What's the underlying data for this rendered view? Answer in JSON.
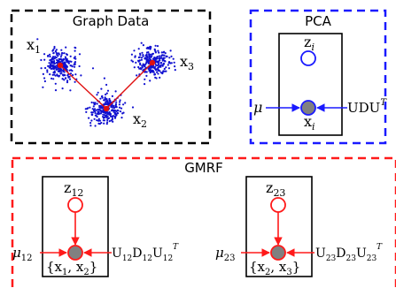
{
  "panels": {
    "graph_data": {
      "title": "Graph Data",
      "border_color": "#000000",
      "cluster_color": "#1010d0",
      "node_color": "#e01010",
      "edge_color": "#e01010",
      "node_labels": {
        "x1": {
          "base": "x",
          "sub": "1"
        },
        "x2": {
          "base": "x",
          "sub": "2"
        },
        "x3": {
          "base": "x",
          "sub": "3"
        }
      }
    },
    "pca": {
      "title": "PCA",
      "border_color": "#1a1aff",
      "latent": {
        "base": "z",
        "sub": "i"
      },
      "observed": {
        "base": "x",
        "sub": "i"
      },
      "mean": "μ",
      "covariance": {
        "base": "UDU",
        "sup": "T"
      },
      "arrow_color": "#1a1aff",
      "node_fill": "#808080"
    },
    "gmrf": {
      "title": "GMRF",
      "border_color": "#ff1a1a",
      "arrow_color": "#ff1a1a",
      "node_fill": "#808080",
      "latent_stroke": "#ff1a1a",
      "factors": [
        {
          "latent": {
            "base": "z",
            "sub": "12"
          },
          "mean": {
            "base": "μ",
            "sub": "12"
          },
          "covariance": {
            "U": "U",
            "U_sub": "12",
            "D": "D",
            "D_sub": "12",
            "Ut": "U",
            "Ut_sub": "12",
            "Ut_sup": "T"
          },
          "observed": {
            "open": "{x",
            "a": "1",
            "mid": ", x",
            "b": "2",
            "close": "}"
          }
        },
        {
          "latent": {
            "base": "z",
            "sub": "23"
          },
          "mean": {
            "base": "μ",
            "sub": "23"
          },
          "covariance": {
            "U": "U",
            "U_sub": "23",
            "D": "D",
            "D_sub": "23",
            "Ut": "U",
            "Ut_sub": "23",
            "Ut_sup": "T"
          },
          "observed": {
            "open": "{x",
            "a": "2",
            "mid": ", x",
            "b": "3",
            "close": "}"
          }
        }
      ]
    }
  }
}
